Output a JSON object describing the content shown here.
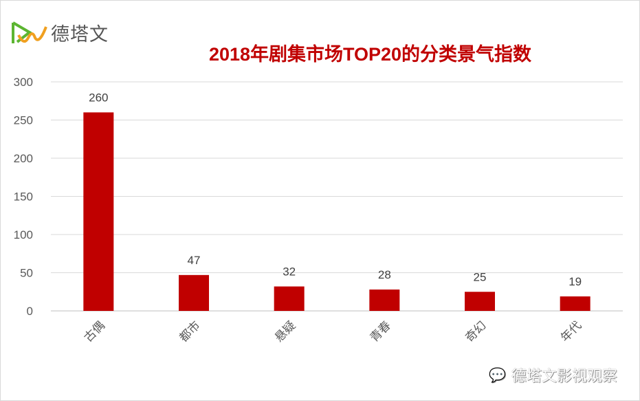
{
  "logo": {
    "text": "德塔文"
  },
  "watermark": {
    "text": "德塔文影视观察"
  },
  "colors": {
    "bar": "#c00000",
    "title": "#c00000",
    "grid": "#d9d9d9"
  },
  "chart_data": {
    "type": "bar",
    "title": "2018年剧集市场TOP20的分类景气指数",
    "categories": [
      "古偶",
      "都市",
      "悬疑",
      "青春",
      "奇幻",
      "年代"
    ],
    "values": [
      260,
      47,
      32,
      28,
      25,
      19
    ],
    "ylim": [
      0,
      300
    ],
    "yticks": [
      0,
      50,
      100,
      150,
      200,
      250,
      300
    ],
    "grid": true,
    "xlabel": "",
    "ylabel": ""
  }
}
